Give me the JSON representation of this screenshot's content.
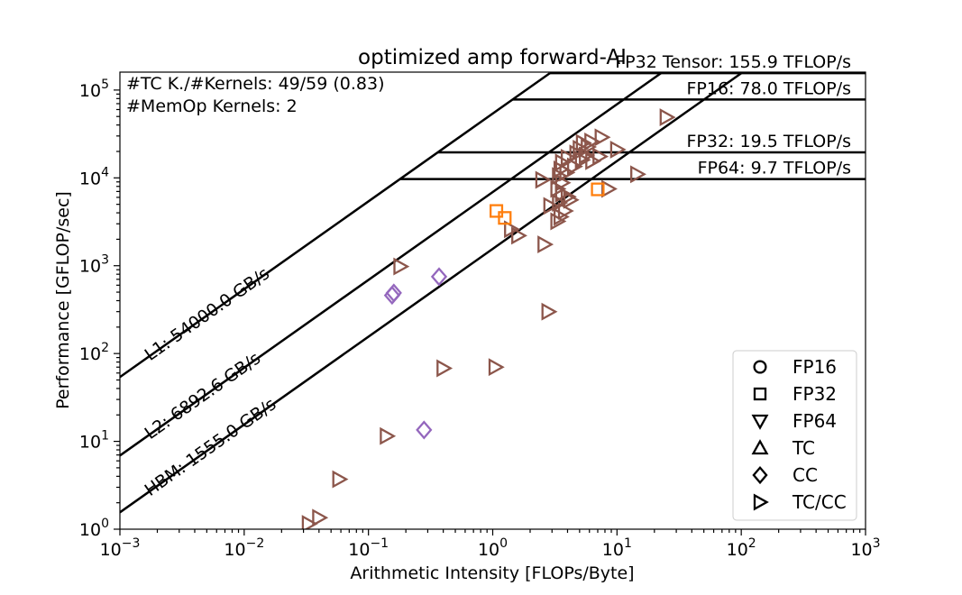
{
  "chart_data": {
    "type": "scatter",
    "title": "optimized amp forward-AI",
    "xlabel": "Arithmetic Intensity [FLOPs/Byte]",
    "ylabel": "Performance [GFLOP/sec]",
    "xscale": "log",
    "yscale": "log",
    "xlim": [
      0.001,
      1000
    ],
    "ylim": [
      1,
      160000
    ],
    "x_tick_values": [
      0.001,
      0.01,
      0.1,
      1,
      10,
      100,
      1000
    ],
    "y_tick_values": [
      1,
      10,
      100,
      1000,
      10000,
      100000
    ],
    "x_ticks": [
      {
        "base": "10",
        "exp": "−3"
      },
      {
        "base": "10",
        "exp": "−2"
      },
      {
        "base": "10",
        "exp": "−1"
      },
      {
        "base": "10",
        "exp": "0"
      },
      {
        "base": "10",
        "exp": "1"
      },
      {
        "base": "10",
        "exp": "2"
      },
      {
        "base": "10",
        "exp": "3"
      }
    ],
    "y_ticks": [
      {
        "base": "10",
        "exp": "0"
      },
      {
        "base": "10",
        "exp": "1"
      },
      {
        "base": "10",
        "exp": "2"
      },
      {
        "base": "10",
        "exp": "3"
      },
      {
        "base": "10",
        "exp": "4"
      },
      {
        "base": "10",
        "exp": "5"
      }
    ],
    "memory_roofs": [
      {
        "label": "L1: 54000.0 GB/s",
        "bandwidth_gbs": 54000.0
      },
      {
        "label": "L2: 6892.6 GB/s",
        "bandwidth_gbs": 6892.6
      },
      {
        "label": "HBM: 1555.0 GB/s",
        "bandwidth_gbs": 1555.0
      }
    ],
    "compute_roofs": [
      {
        "label": "FP32 Tensor: 155.9 TFLOP/s",
        "gflops": 155900
      },
      {
        "label": "FP16: 78.0 TFLOP/s",
        "gflops": 78000
      },
      {
        "label": "FP32: 19.5 TFLOP/s",
        "gflops": 19500
      },
      {
        "label": "FP64: 9.7 TFLOP/s",
        "gflops": 9700
      }
    ],
    "annotations": [
      "#TC K./#Kernels:  49/59 (0.83)",
      "#MemOp Kernels: 2"
    ],
    "legend": {
      "placement": "bottom-right",
      "entries": [
        {
          "label": "FP16",
          "marker": "circle"
        },
        {
          "label": "FP32",
          "marker": "square"
        },
        {
          "label": "FP64",
          "marker": "triangle-down"
        },
        {
          "label": "TC",
          "marker": "triangle-up"
        },
        {
          "label": "CC",
          "marker": "diamond"
        },
        {
          "label": "TC/CC",
          "marker": "triangle-right"
        }
      ]
    },
    "colors": {
      "TC/CC": "#8c564b",
      "FP32": "#ff7f0e",
      "CC": "#9467bd"
    },
    "series": [
      {
        "name": "TC/CC",
        "marker": "triangle-right",
        "points": [
          [
            0.033,
            1.15
          ],
          [
            0.04,
            1.35
          ],
          [
            0.058,
            3.7
          ],
          [
            0.14,
            11.5
          ],
          [
            0.18,
            980
          ],
          [
            0.4,
            68
          ],
          [
            1.05,
            70
          ],
          [
            2.8,
            300
          ],
          [
            2.6,
            1750
          ],
          [
            1.6,
            2200
          ],
          [
            1.4,
            2600
          ],
          [
            2.5,
            9500
          ],
          [
            2.9,
            4800
          ],
          [
            3.3,
            3200
          ],
          [
            3.5,
            3600
          ],
          [
            3.8,
            4200
          ],
          [
            3.4,
            5200
          ],
          [
            4.2,
            5600
          ],
          [
            3.6,
            6600
          ],
          [
            4.0,
            6100
          ],
          [
            3.3,
            7500
          ],
          [
            3.6,
            8800
          ],
          [
            3.4,
            10500
          ],
          [
            3.9,
            11500
          ],
          [
            3.5,
            12500
          ],
          [
            4.5,
            13500
          ],
          [
            3.6,
            15000
          ],
          [
            4.0,
            17000
          ],
          [
            4.7,
            19000
          ],
          [
            5.2,
            16000
          ],
          [
            5.6,
            18000
          ],
          [
            6.3,
            15500
          ],
          [
            7.2,
            17500
          ],
          [
            5.0,
            21500
          ],
          [
            5.8,
            22500
          ],
          [
            5.3,
            25000
          ],
          [
            6.2,
            26000
          ],
          [
            7.5,
            29000
          ],
          [
            10.0,
            21000
          ],
          [
            8.5,
            7500
          ],
          [
            14.5,
            11000
          ],
          [
            25.0,
            49000
          ]
        ]
      },
      {
        "name": "FP32",
        "marker": "square",
        "points": [
          [
            1.07,
            4200
          ],
          [
            1.25,
            3500
          ],
          [
            7.0,
            7400
          ]
        ]
      },
      {
        "name": "CC",
        "marker": "diamond",
        "points": [
          [
            0.155,
            460
          ],
          [
            0.16,
            490
          ],
          [
            0.37,
            750
          ],
          [
            0.28,
            13.5
          ]
        ]
      }
    ]
  }
}
